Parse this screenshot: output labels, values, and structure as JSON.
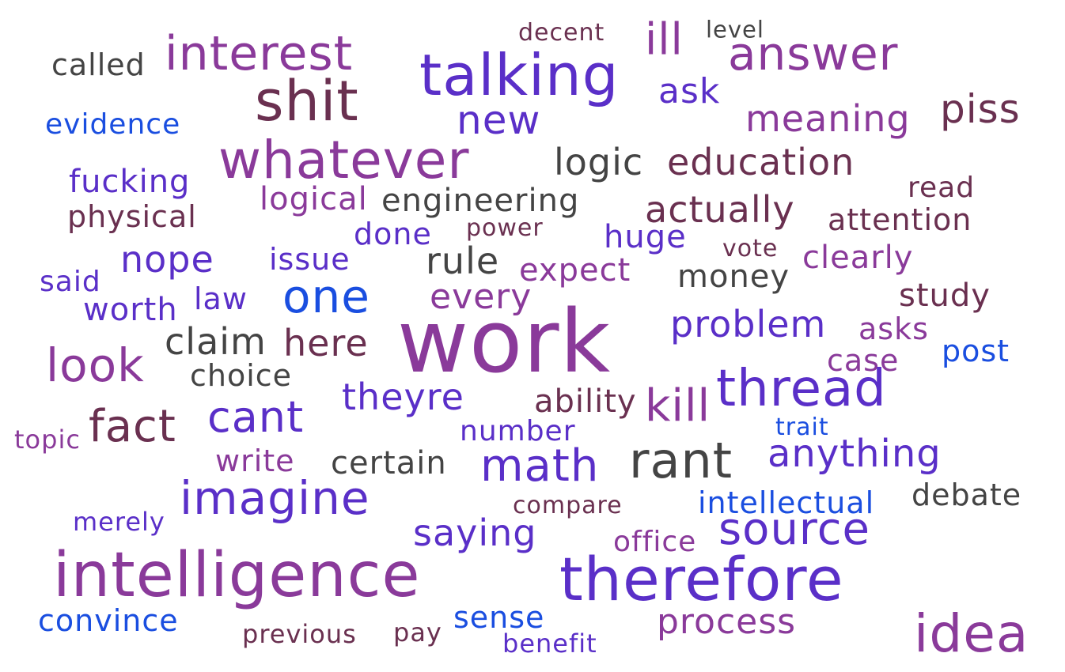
{
  "palette": {
    "violet": "#8a3a9a",
    "indigo": "#5a2fc8",
    "blue": "#1a4ee0",
    "plum": "#6a3050",
    "charcoal": "#444444"
  },
  "words": [
    {
      "text": "decent",
      "color": "plum"
    },
    {
      "text": "level",
      "color": "charcoal"
    },
    {
      "text": "ill",
      "color": "violet"
    },
    {
      "text": "interest",
      "color": "violet"
    },
    {
      "text": "answer",
      "color": "violet"
    },
    {
      "text": "called",
      "color": "charcoal"
    },
    {
      "text": "talking",
      "color": "indigo"
    },
    {
      "text": "shit",
      "color": "plum"
    },
    {
      "text": "ask",
      "color": "indigo"
    },
    {
      "text": "piss",
      "color": "plum"
    },
    {
      "text": "evidence",
      "color": "blue"
    },
    {
      "text": "new",
      "color": "indigo"
    },
    {
      "text": "meaning",
      "color": "violet"
    },
    {
      "text": "whatever",
      "color": "violet"
    },
    {
      "text": "logic",
      "color": "charcoal"
    },
    {
      "text": "education",
      "color": "plum"
    },
    {
      "text": "fucking",
      "color": "indigo"
    },
    {
      "text": "read",
      "color": "plum"
    },
    {
      "text": "logical",
      "color": "violet"
    },
    {
      "text": "engineering",
      "color": "charcoal"
    },
    {
      "text": "actually",
      "color": "plum"
    },
    {
      "text": "physical",
      "color": "plum"
    },
    {
      "text": "attention",
      "color": "plum"
    },
    {
      "text": "power",
      "color": "plum"
    },
    {
      "text": "done",
      "color": "indigo"
    },
    {
      "text": "huge",
      "color": "indigo"
    },
    {
      "text": "vote",
      "color": "plum"
    },
    {
      "text": "nope",
      "color": "indigo"
    },
    {
      "text": "issue",
      "color": "indigo"
    },
    {
      "text": "rule",
      "color": "charcoal"
    },
    {
      "text": "clearly",
      "color": "violet"
    },
    {
      "text": "expect",
      "color": "violet"
    },
    {
      "text": "said",
      "color": "indigo"
    },
    {
      "text": "money",
      "color": "charcoal"
    },
    {
      "text": "one",
      "color": "blue"
    },
    {
      "text": "law",
      "color": "indigo"
    },
    {
      "text": "every",
      "color": "violet"
    },
    {
      "text": "study",
      "color": "plum"
    },
    {
      "text": "worth",
      "color": "indigo"
    },
    {
      "text": "work",
      "color": "violet"
    },
    {
      "text": "problem",
      "color": "indigo"
    },
    {
      "text": "asks",
      "color": "violet"
    },
    {
      "text": "claim",
      "color": "charcoal"
    },
    {
      "text": "here",
      "color": "plum"
    },
    {
      "text": "post",
      "color": "blue"
    },
    {
      "text": "look",
      "color": "violet"
    },
    {
      "text": "case",
      "color": "violet"
    },
    {
      "text": "choice",
      "color": "charcoal"
    },
    {
      "text": "thread",
      "color": "indigo"
    },
    {
      "text": "theyre",
      "color": "indigo"
    },
    {
      "text": "ability",
      "color": "plum"
    },
    {
      "text": "kill",
      "color": "violet"
    },
    {
      "text": "fact",
      "color": "plum"
    },
    {
      "text": "cant",
      "color": "indigo"
    },
    {
      "text": "trait",
      "color": "blue"
    },
    {
      "text": "number",
      "color": "indigo"
    },
    {
      "text": "topic",
      "color": "violet"
    },
    {
      "text": "anything",
      "color": "indigo"
    },
    {
      "text": "write",
      "color": "violet"
    },
    {
      "text": "certain",
      "color": "charcoal"
    },
    {
      "text": "math",
      "color": "indigo"
    },
    {
      "text": "rant",
      "color": "charcoal"
    },
    {
      "text": "imagine",
      "color": "indigo"
    },
    {
      "text": "debate",
      "color": "charcoal"
    },
    {
      "text": "compare",
      "color": "plum"
    },
    {
      "text": "intellectual",
      "color": "blue"
    },
    {
      "text": "merely",
      "color": "indigo"
    },
    {
      "text": "saying",
      "color": "indigo"
    },
    {
      "text": "source",
      "color": "indigo"
    },
    {
      "text": "office",
      "color": "violet"
    },
    {
      "text": "intelligence",
      "color": "violet"
    },
    {
      "text": "therefore",
      "color": "indigo"
    },
    {
      "text": "sense",
      "color": "blue"
    },
    {
      "text": "process",
      "color": "violet"
    },
    {
      "text": "convince",
      "color": "blue"
    },
    {
      "text": "previous",
      "color": "plum"
    },
    {
      "text": "pay",
      "color": "plum"
    },
    {
      "text": "benefit",
      "color": "indigo"
    },
    {
      "text": "idea",
      "color": "violet"
    }
  ]
}
